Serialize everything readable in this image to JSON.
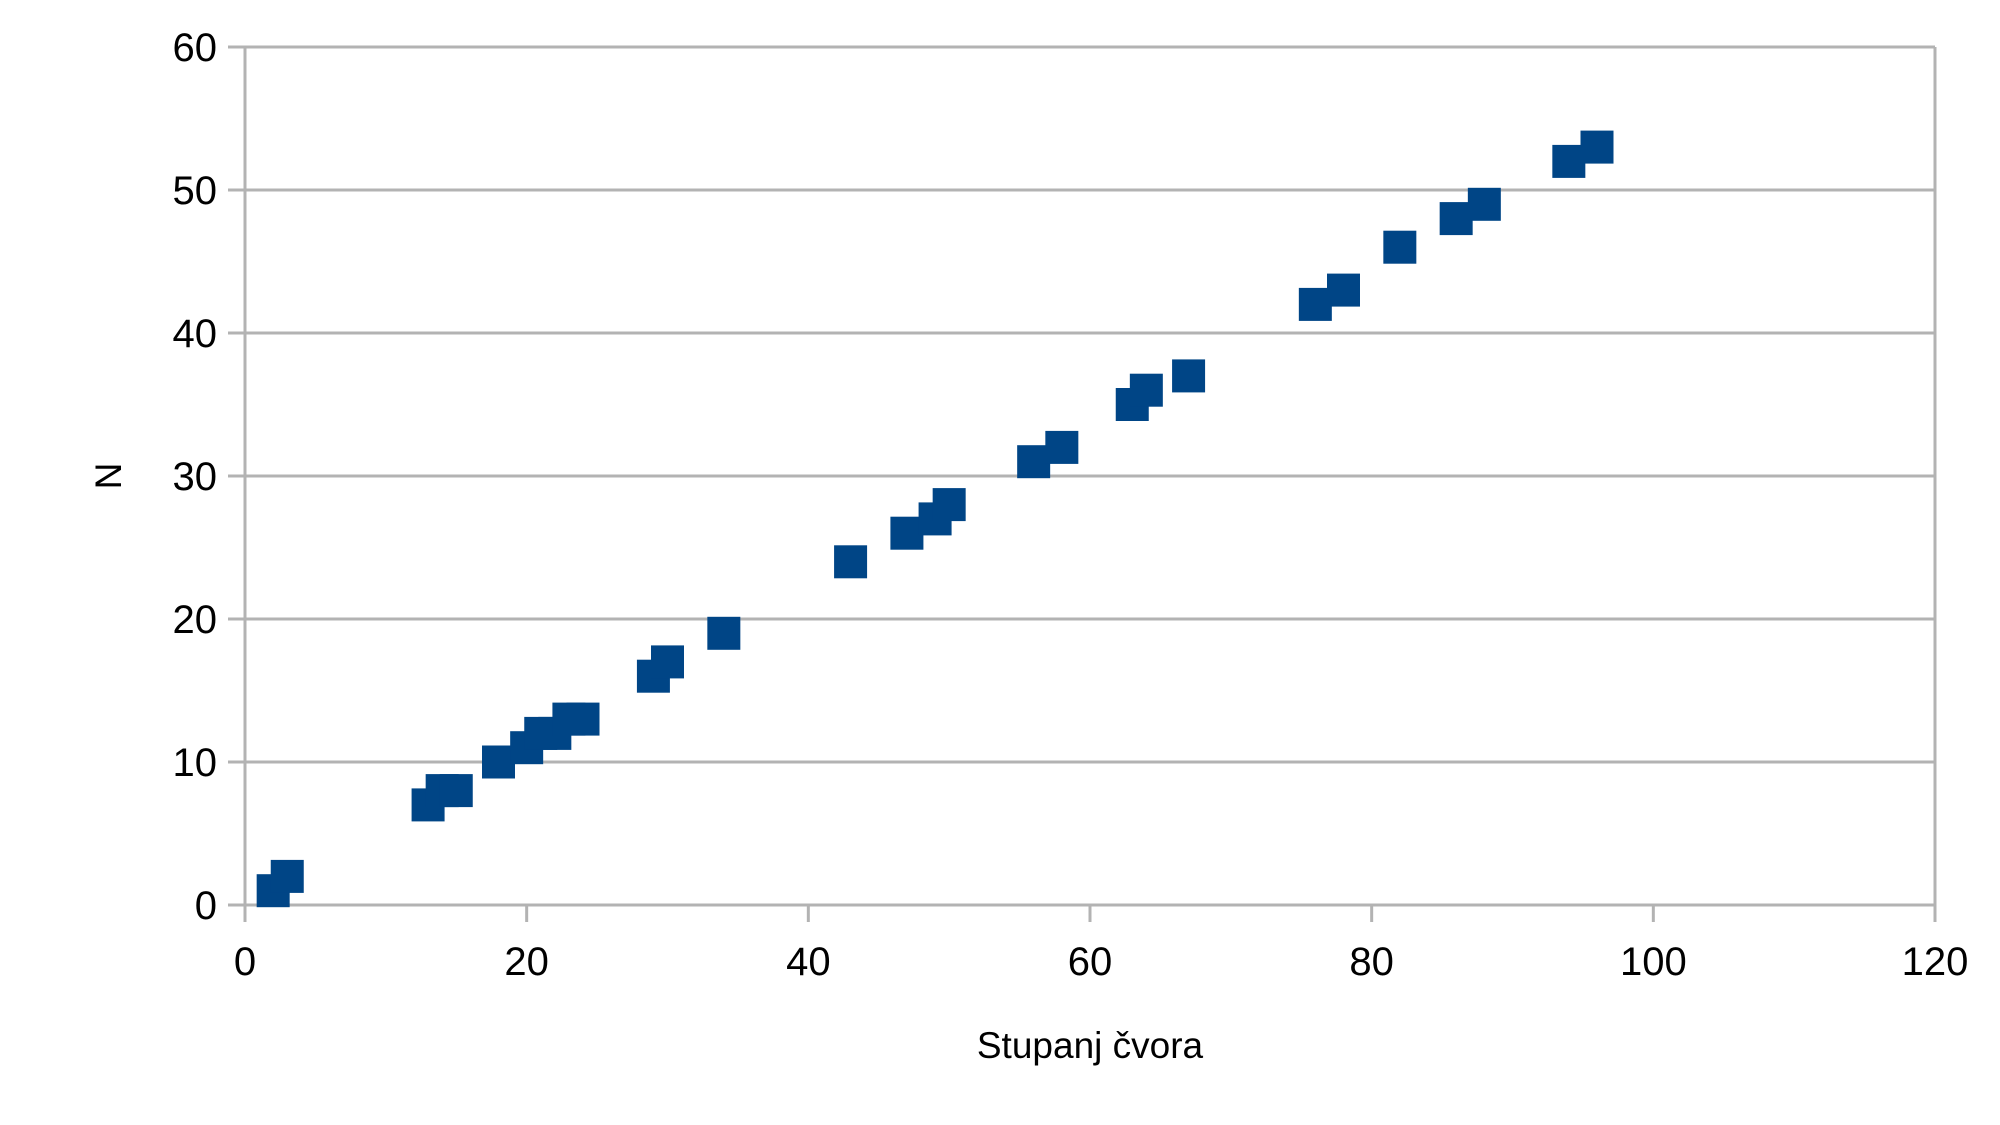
{
  "chart_data": {
    "type": "scatter",
    "title": "",
    "xlabel": "Stupanj čvora",
    "ylabel": "N",
    "xlim": [
      0,
      120
    ],
    "ylim": [
      0,
      60
    ],
    "xticks": [
      0,
      20,
      40,
      60,
      80,
      100,
      120
    ],
    "yticks": [
      0,
      10,
      20,
      30,
      40,
      50,
      60
    ],
    "grid": "horizontal",
    "legend": "none",
    "marker": "square",
    "color": "#004586",
    "series": [
      {
        "points": [
          {
            "x": 2,
            "y": 1
          },
          {
            "x": 3,
            "y": 2
          },
          {
            "x": 13,
            "y": 7
          },
          {
            "x": 14,
            "y": 8
          },
          {
            "x": 15,
            "y": 8
          },
          {
            "x": 18,
            "y": 10
          },
          {
            "x": 20,
            "y": 11
          },
          {
            "x": 21,
            "y": 12
          },
          {
            "x": 22,
            "y": 12
          },
          {
            "x": 23,
            "y": 13
          },
          {
            "x": 24,
            "y": 13
          },
          {
            "x": 29,
            "y": 16
          },
          {
            "x": 30,
            "y": 17
          },
          {
            "x": 34,
            "y": 19
          },
          {
            "x": 43,
            "y": 24
          },
          {
            "x": 47,
            "y": 26
          },
          {
            "x": 49,
            "y": 27
          },
          {
            "x": 50,
            "y": 28
          },
          {
            "x": 56,
            "y": 31
          },
          {
            "x": 58,
            "y": 32
          },
          {
            "x": 63,
            "y": 35
          },
          {
            "x": 64,
            "y": 36
          },
          {
            "x": 67,
            "y": 37
          },
          {
            "x": 76,
            "y": 42
          },
          {
            "x": 78,
            "y": 43
          },
          {
            "x": 82,
            "y": 46
          },
          {
            "x": 86,
            "y": 48
          },
          {
            "x": 88,
            "y": 49
          },
          {
            "x": 94,
            "y": 52
          },
          {
            "x": 96,
            "y": 53
          }
        ]
      }
    ]
  }
}
